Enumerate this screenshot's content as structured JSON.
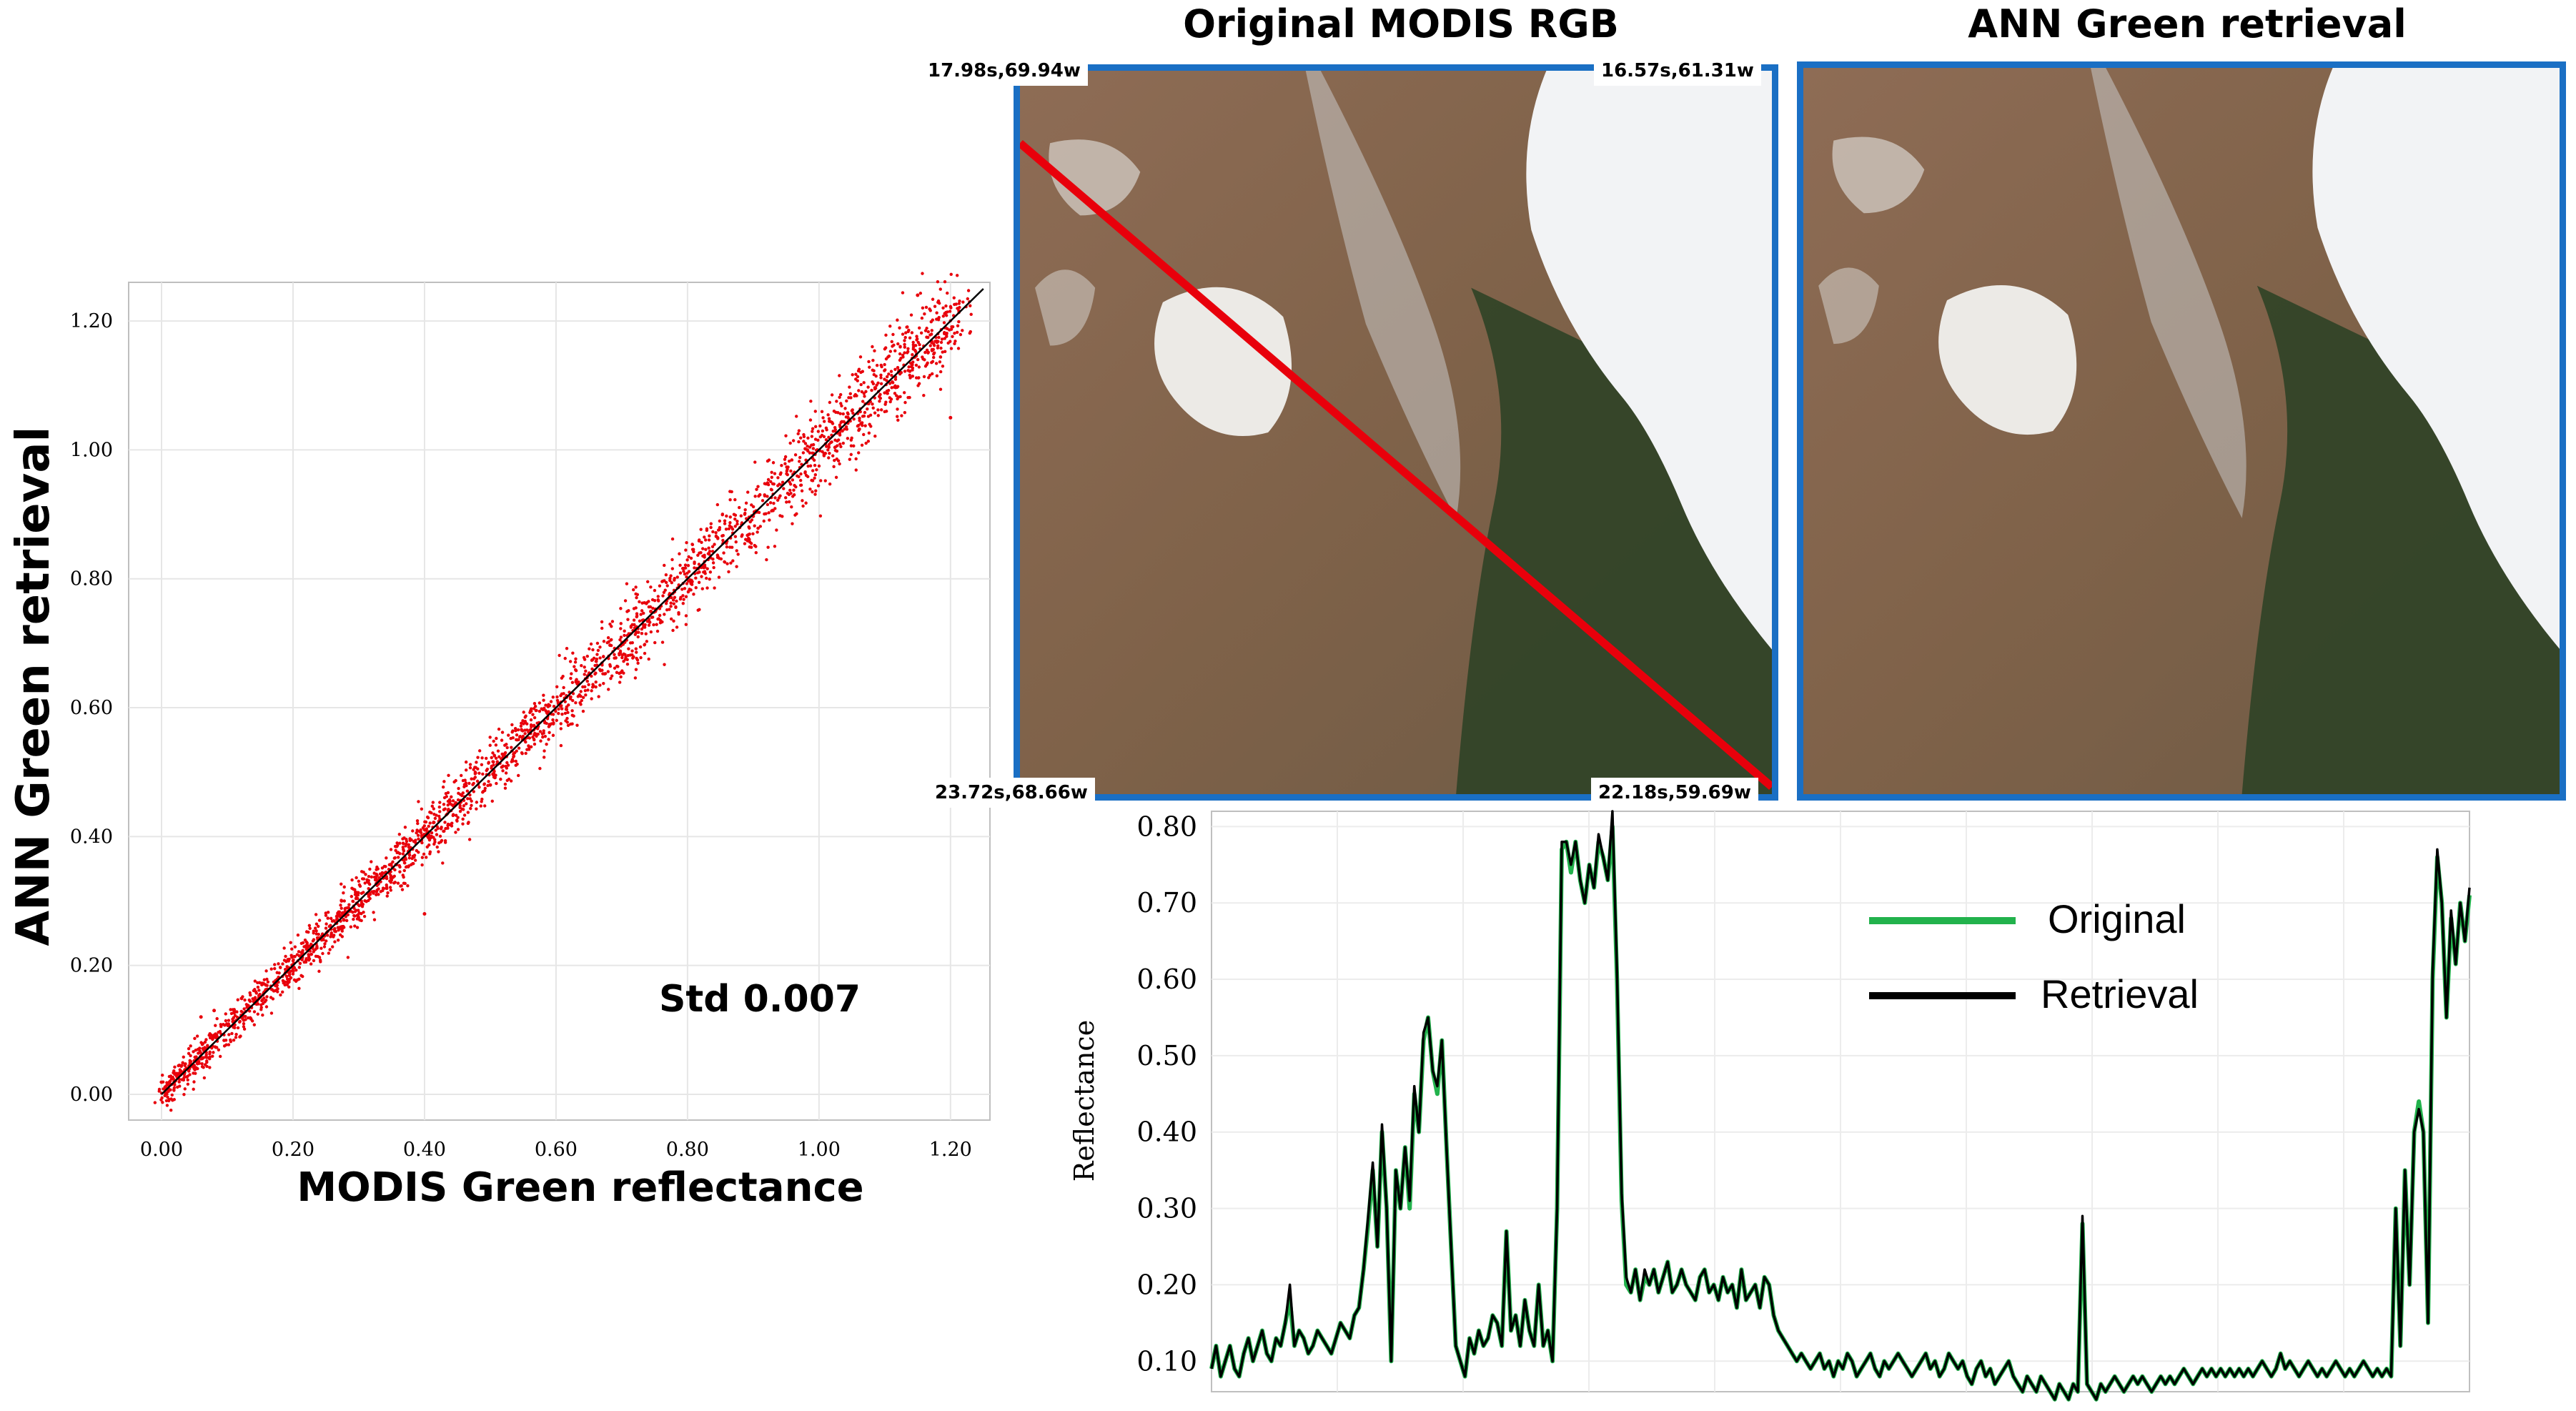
{
  "chart_data": [
    {
      "type": "scatter",
      "xlabel": "MODIS Green reflectance",
      "ylabel": "ANN Green retrieval",
      "annotation": "Std 0.007",
      "xlim": [
        -0.05,
        1.26
      ],
      "ylim": [
        -0.04,
        1.26
      ],
      "x_ticks": [
        "0.00",
        "0.20",
        "0.40",
        "0.60",
        "0.80",
        "1.00",
        "1.20"
      ],
      "y_ticks": [
        "0.00",
        "0.20",
        "0.40",
        "0.60",
        "0.80",
        "1.00",
        "1.20"
      ],
      "x_tick_values": [
        0,
        0.2,
        0.4,
        0.6,
        0.8,
        1.0,
        1.2
      ],
      "y_tick_values": [
        0,
        0.2,
        0.4,
        0.6,
        0.8,
        1.0,
        1.2
      ],
      "point_color": "#e8000b",
      "fit_line_color": "#000000",
      "fit_line": [
        [
          0.0,
          0.0
        ],
        [
          1.25,
          1.25
        ]
      ],
      "point_range": [
        0.0,
        1.22
      ],
      "spread_std": 0.007,
      "grid": true
    },
    {
      "type": "line",
      "ylabel": "Reflectance",
      "ylim": [
        0.06,
        0.82
      ],
      "y_ticks": [
        "0.10",
        "0.20",
        "0.30",
        "0.40",
        "0.50",
        "0.60",
        "0.70",
        "0.80"
      ],
      "y_tick_values": [
        0.1,
        0.2,
        0.3,
        0.4,
        0.5,
        0.6,
        0.7,
        0.8
      ],
      "legend_position": "top-right",
      "grid": true,
      "x_samples": 400,
      "series": [
        {
          "name": "Original",
          "color": "#22b24c",
          "values": [
            0.09,
            0.12,
            0.08,
            0.1,
            0.12,
            0.09,
            0.08,
            0.11,
            0.13,
            0.1,
            0.12,
            0.14,
            0.11,
            0.1,
            0.13,
            0.12,
            0.15,
            0.18,
            0.12,
            0.14,
            0.13,
            0.11,
            0.12,
            0.14,
            0.13,
            0.12,
            0.11,
            0.13,
            0.15,
            0.14,
            0.13,
            0.16,
            0.17,
            0.22,
            0.28,
            0.35,
            0.25,
            0.4,
            0.3,
            0.1,
            0.35,
            0.3,
            0.38,
            0.3,
            0.45,
            0.4,
            0.52,
            0.55,
            0.48,
            0.45,
            0.52,
            0.38,
            0.25,
            0.12,
            0.1,
            0.08,
            0.13,
            0.11,
            0.14,
            0.12,
            0.13,
            0.16,
            0.15,
            0.12,
            0.27,
            0.14,
            0.16,
            0.12,
            0.18,
            0.14,
            0.12,
            0.2,
            0.12,
            0.14,
            0.1,
            0.3,
            0.77,
            0.78,
            0.74,
            0.78,
            0.73,
            0.7,
            0.75,
            0.72,
            0.78,
            0.76,
            0.73,
            0.8,
            0.6,
            0.31,
            0.2,
            0.19,
            0.22,
            0.18,
            0.21,
            0.2,
            0.22,
            0.19,
            0.21,
            0.23,
            0.19,
            0.2,
            0.22,
            0.2,
            0.19,
            0.18,
            0.21,
            0.22,
            0.19,
            0.2,
            0.18,
            0.21,
            0.19,
            0.2,
            0.17,
            0.22,
            0.18,
            0.19,
            0.2,
            0.17,
            0.21,
            0.2,
            0.16,
            0.14,
            0.13,
            0.12,
            0.11,
            0.1,
            0.11,
            0.1,
            0.09,
            0.1,
            0.11,
            0.09,
            0.1,
            0.08,
            0.1,
            0.09,
            0.11,
            0.1,
            0.08,
            0.09,
            0.1,
            0.11,
            0.09,
            0.08,
            0.1,
            0.09,
            0.1,
            0.11,
            0.1,
            0.09,
            0.08,
            0.09,
            0.1,
            0.11,
            0.09,
            0.1,
            0.08,
            0.09,
            0.11,
            0.1,
            0.09,
            0.1,
            0.08,
            0.07,
            0.09,
            0.1,
            0.08,
            0.09,
            0.07,
            0.08,
            0.09,
            0.1,
            0.08,
            0.07,
            0.06,
            0.08,
            0.07,
            0.06,
            0.08,
            0.07,
            0.06,
            0.05,
            0.07,
            0.06,
            0.05,
            0.07,
            0.06,
            0.28,
            0.07,
            0.06,
            0.05,
            0.07,
            0.06,
            0.07,
            0.08,
            0.07,
            0.06,
            0.07,
            0.08,
            0.07,
            0.08,
            0.07,
            0.06,
            0.07,
            0.08,
            0.07,
            0.08,
            0.07,
            0.08,
            0.09,
            0.08,
            0.07,
            0.08,
            0.09,
            0.08,
            0.09,
            0.08,
            0.09,
            0.08,
            0.09,
            0.08,
            0.09,
            0.08,
            0.09,
            0.08,
            0.09,
            0.1,
            0.09,
            0.08,
            0.09,
            0.11,
            0.09,
            0.1,
            0.09,
            0.08,
            0.09,
            0.1,
            0.09,
            0.08,
            0.09,
            0.08,
            0.09,
            0.1,
            0.09,
            0.08,
            0.09,
            0.08,
            0.09,
            0.1,
            0.09,
            0.08,
            0.09,
            0.08,
            0.09,
            0.08,
            0.3,
            0.12,
            0.35,
            0.2,
            0.4,
            0.44,
            0.4,
            0.15,
            0.6,
            0.76,
            0.7,
            0.55,
            0.68,
            0.62,
            0.7,
            0.65,
            0.71
          ]
        },
        {
          "name": "Retrieval",
          "color": "#000000",
          "values": [
            0.09,
            0.12,
            0.08,
            0.1,
            0.12,
            0.09,
            0.08,
            0.11,
            0.13,
            0.1,
            0.12,
            0.14,
            0.11,
            0.1,
            0.13,
            0.12,
            0.15,
            0.2,
            0.12,
            0.14,
            0.13,
            0.11,
            0.12,
            0.14,
            0.13,
            0.12,
            0.11,
            0.13,
            0.15,
            0.14,
            0.13,
            0.16,
            0.17,
            0.22,
            0.29,
            0.36,
            0.25,
            0.41,
            0.3,
            0.1,
            0.35,
            0.3,
            0.38,
            0.31,
            0.46,
            0.4,
            0.53,
            0.55,
            0.48,
            0.46,
            0.52,
            0.38,
            0.25,
            0.12,
            0.1,
            0.08,
            0.13,
            0.11,
            0.14,
            0.12,
            0.13,
            0.16,
            0.15,
            0.12,
            0.27,
            0.14,
            0.16,
            0.12,
            0.18,
            0.14,
            0.12,
            0.2,
            0.12,
            0.14,
            0.1,
            0.3,
            0.78,
            0.78,
            0.75,
            0.78,
            0.73,
            0.7,
            0.75,
            0.72,
            0.79,
            0.76,
            0.73,
            0.82,
            0.61,
            0.32,
            0.21,
            0.19,
            0.22,
            0.18,
            0.22,
            0.2,
            0.22,
            0.19,
            0.21,
            0.23,
            0.19,
            0.2,
            0.22,
            0.2,
            0.19,
            0.18,
            0.21,
            0.22,
            0.19,
            0.2,
            0.18,
            0.21,
            0.19,
            0.2,
            0.17,
            0.22,
            0.18,
            0.19,
            0.2,
            0.17,
            0.21,
            0.2,
            0.16,
            0.14,
            0.13,
            0.12,
            0.11,
            0.1,
            0.11,
            0.1,
            0.09,
            0.1,
            0.11,
            0.09,
            0.1,
            0.08,
            0.1,
            0.09,
            0.11,
            0.1,
            0.08,
            0.09,
            0.1,
            0.11,
            0.09,
            0.08,
            0.1,
            0.09,
            0.1,
            0.11,
            0.1,
            0.09,
            0.08,
            0.09,
            0.1,
            0.11,
            0.09,
            0.1,
            0.08,
            0.09,
            0.11,
            0.1,
            0.09,
            0.1,
            0.08,
            0.07,
            0.09,
            0.1,
            0.08,
            0.09,
            0.07,
            0.08,
            0.09,
            0.1,
            0.08,
            0.07,
            0.06,
            0.08,
            0.07,
            0.06,
            0.08,
            0.07,
            0.06,
            0.05,
            0.07,
            0.06,
            0.05,
            0.07,
            0.06,
            0.29,
            0.07,
            0.06,
            0.05,
            0.07,
            0.06,
            0.07,
            0.08,
            0.07,
            0.06,
            0.07,
            0.08,
            0.07,
            0.08,
            0.07,
            0.06,
            0.07,
            0.08,
            0.07,
            0.08,
            0.07,
            0.08,
            0.09,
            0.08,
            0.07,
            0.08,
            0.09,
            0.08,
            0.09,
            0.08,
            0.09,
            0.08,
            0.09,
            0.08,
            0.09,
            0.08,
            0.09,
            0.08,
            0.09,
            0.1,
            0.09,
            0.08,
            0.09,
            0.11,
            0.09,
            0.1,
            0.09,
            0.08,
            0.09,
            0.1,
            0.09,
            0.08,
            0.09,
            0.08,
            0.09,
            0.1,
            0.09,
            0.08,
            0.09,
            0.08,
            0.09,
            0.1,
            0.09,
            0.08,
            0.09,
            0.08,
            0.09,
            0.08,
            0.3,
            0.12,
            0.35,
            0.2,
            0.4,
            0.43,
            0.4,
            0.15,
            0.61,
            0.77,
            0.7,
            0.55,
            0.69,
            0.62,
            0.7,
            0.65,
            0.72
          ]
        }
      ]
    }
  ],
  "images": [
    {
      "title": "Original MODIS RGB",
      "corners": {
        "top_left": "17.98s,69.94w",
        "top_right": "16.57s,61.31w",
        "bottom_left": "23.72s,68.66w",
        "bottom_right": "22.18s,59.69w"
      },
      "transect_color": "#e8000b"
    },
    {
      "title": "ANN Green retrieval"
    }
  ],
  "colors": {
    "frame": "#1a6fc4",
    "terrain": "#8a6b4e",
    "salt_flat": "#eceae6",
    "vegetation": "#2f4226",
    "cloud": "#f2f3f5"
  }
}
